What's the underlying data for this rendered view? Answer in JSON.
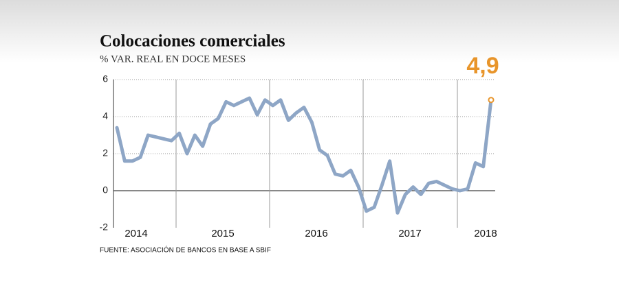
{
  "chart_data": {
    "type": "line",
    "title": "Colocaciones comerciales",
    "subtitle": "% VAR. REAL EN DOCE MESES",
    "source": "FUENTE: ASOCIACIÓN DE BANCOS EN BASE A SBIF",
    "year_labels": [
      "2014",
      "2015",
      "2016",
      "2017",
      "2018"
    ],
    "categories": [
      null,
      null,
      null,
      null,
      null,
      null,
      null,
      null,
      null,
      null,
      null,
      null,
      null,
      null,
      null,
      null,
      null,
      null,
      null,
      null,
      null,
      null,
      null,
      null,
      null,
      null,
      null,
      null,
      null,
      null,
      null,
      null,
      null,
      null,
      null,
      null,
      null,
      null,
      null,
      null,
      null,
      null,
      null,
      null,
      null,
      null,
      null,
      null,
      null
    ],
    "series": [
      {
        "color": "#8ea6c6",
        "values": [
          3.4,
          1.6,
          1.6,
          1.8,
          3.0,
          2.9,
          2.8,
          2.7,
          3.1,
          2.0,
          3.0,
          2.4,
          3.6,
          3.9,
          4.8,
          4.6,
          4.8,
          5.0,
          4.1,
          4.9,
          4.6,
          4.9,
          3.8,
          4.2,
          4.5,
          3.7,
          2.2,
          1.9,
          0.9,
          0.8,
          1.1,
          0.2,
          -1.1,
          -0.9,
          0.3,
          1.6,
          -1.2,
          -0.2,
          0.2,
          -0.2,
          0.4,
          0.5,
          0.3,
          0.1,
          0.0,
          0.1,
          1.5,
          1.3,
          4.9
        ],
        "value_labels": [
          null,
          null,
          null,
          null,
          null,
          null,
          null,
          null,
          null,
          null,
          null,
          null,
          null,
          null,
          null,
          null,
          null,
          null,
          null,
          null,
          null,
          null,
          null,
          null,
          null,
          null,
          null,
          null,
          null,
          null,
          null,
          null,
          null,
          null,
          null,
          null,
          null,
          null,
          null,
          null,
          null,
          null,
          null,
          null,
          null,
          null,
          null,
          null,
          "4,9"
        ]
      }
    ],
    "highlight_color": "#e8952b",
    "ylim": [
      -2,
      6
    ],
    "yticks": [
      -2,
      0,
      2,
      4,
      6
    ],
    "grid": true
  }
}
